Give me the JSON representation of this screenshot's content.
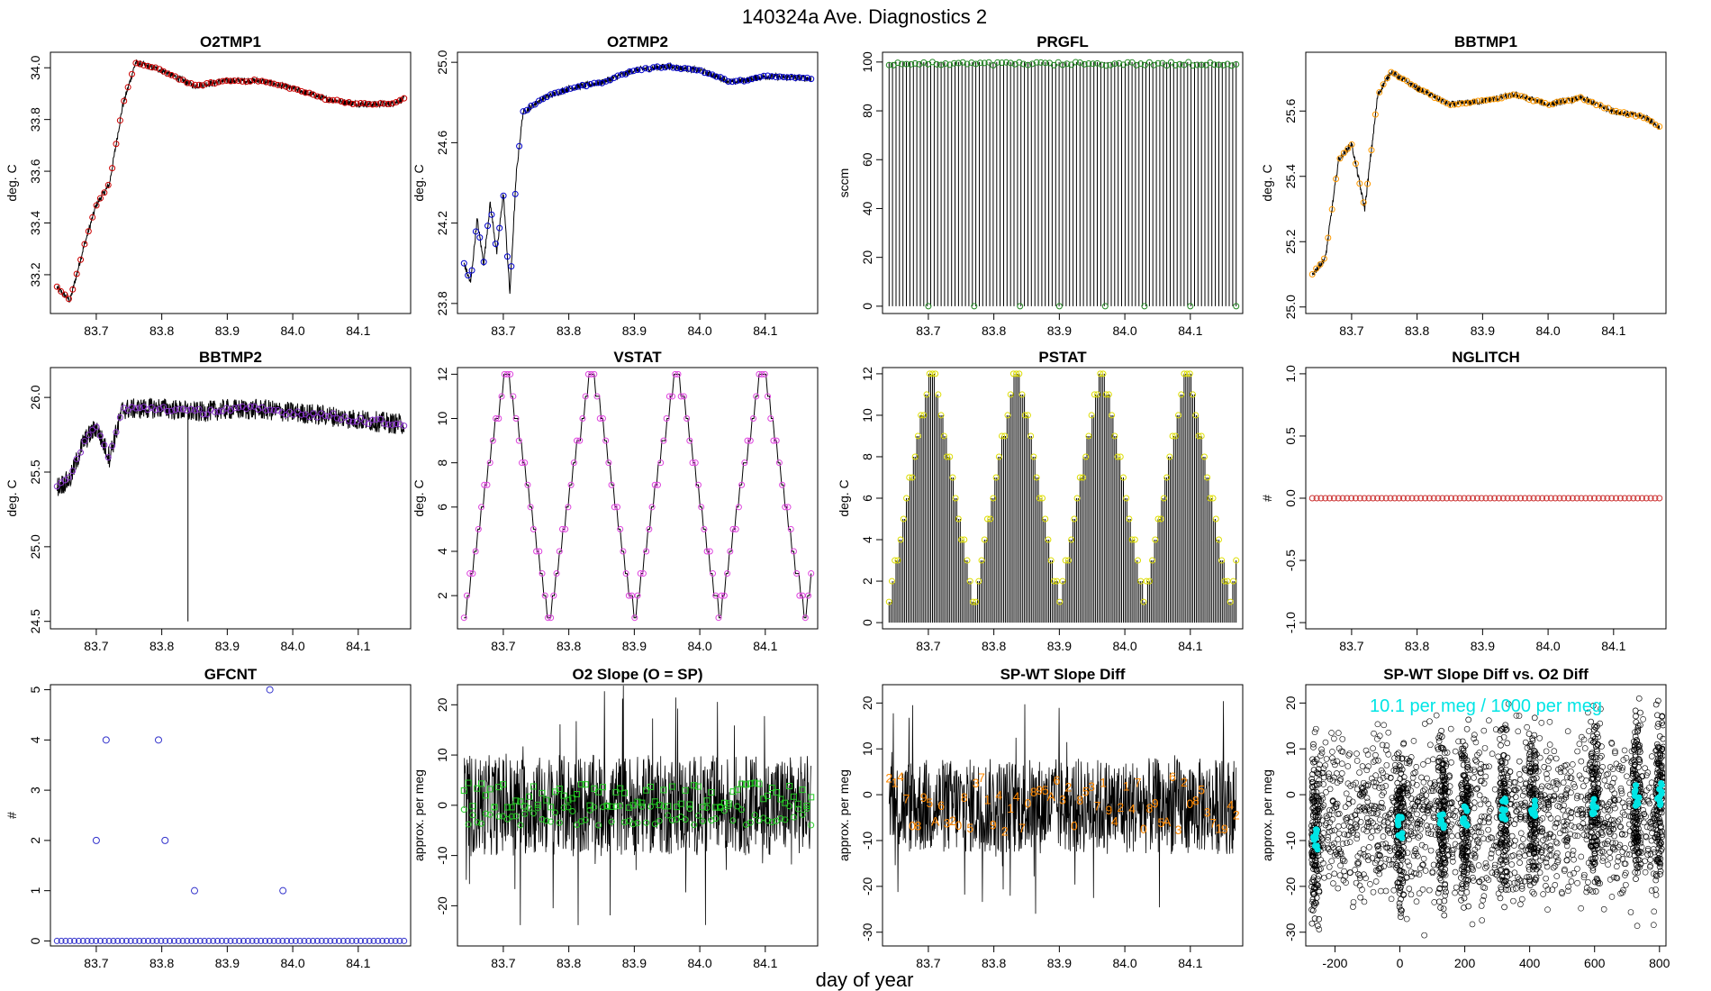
{
  "figure": {
    "title": "140324a   Ave. Diagnostics 2",
    "xlabel": "day of year"
  },
  "chart_data": [
    {
      "id": "p1",
      "type": "line",
      "title": "O2TMP1",
      "ylabel": "deg. C",
      "xlim": [
        83.63,
        84.18
      ],
      "ylim": [
        33.05,
        34.06
      ],
      "xticks": [
        83.7,
        83.8,
        83.9,
        84.0,
        84.1
      ],
      "xtick_labels": [
        "83.7",
        "83.8",
        "83.9",
        "84.0",
        "84.1"
      ],
      "yticks": [
        33.2,
        33.4,
        33.6,
        33.8,
        34.0
      ],
      "ytick_labels": [
        "33.2",
        "33.4",
        "33.6",
        "33.8",
        "34.0"
      ],
      "line_color": "#000000",
      "marker_color": "#cc0000",
      "marker": "circle",
      "x": [
        83.64,
        83.66,
        83.68,
        83.7,
        83.72,
        83.74,
        83.76,
        83.8,
        83.85,
        83.9,
        83.95,
        84.0,
        84.05,
        84.1,
        84.15,
        84.17
      ],
      "y": [
        33.15,
        33.1,
        33.3,
        33.47,
        33.55,
        33.85,
        34.02,
        33.99,
        33.93,
        33.95,
        33.95,
        33.92,
        33.88,
        33.86,
        33.86,
        33.88
      ]
    },
    {
      "id": "p2",
      "type": "line",
      "title": "O2TMP2",
      "ylabel": "deg. C",
      "xlim": [
        83.63,
        84.18
      ],
      "ylim": [
        23.75,
        25.05
      ],
      "xticks": [
        83.7,
        83.8,
        83.9,
        84.0,
        84.1
      ],
      "xtick_labels": [
        "83.7",
        "83.8",
        "83.9",
        "84.0",
        "84.1"
      ],
      "yticks": [
        23.8,
        24.2,
        24.6,
        25.0
      ],
      "ytick_labels": [
        "23.8",
        "24.2",
        "24.6",
        "25.0"
      ],
      "line_color": "#000000",
      "marker_color": "#0000cc",
      "marker": "circle",
      "x": [
        83.64,
        83.65,
        83.66,
        83.67,
        83.68,
        83.69,
        83.7,
        83.71,
        83.72,
        83.73,
        83.76,
        83.8,
        83.85,
        83.9,
        83.95,
        84.0,
        84.05,
        84.1,
        84.17
      ],
      "y": [
        24.0,
        23.9,
        24.22,
        24.0,
        24.3,
        24.05,
        24.35,
        23.85,
        24.45,
        24.75,
        24.82,
        24.87,
        24.9,
        24.96,
        24.98,
        24.96,
        24.9,
        24.93,
        24.92
      ]
    },
    {
      "id": "p3",
      "type": "bar",
      "title": "PRGFL",
      "ylabel": "sccm",
      "xlim": [
        83.63,
        84.18
      ],
      "ylim": [
        -3,
        104
      ],
      "xticks": [
        83.7,
        83.8,
        83.9,
        84.0,
        84.1
      ],
      "xtick_labels": [
        "83.7",
        "83.8",
        "83.9",
        "84.0",
        "84.1"
      ],
      "yticks": [
        0,
        20,
        40,
        60,
        80,
        100
      ],
      "ytick_labels": [
        "0",
        "20",
        "40",
        "60",
        "80",
        "100"
      ],
      "line_color": "#000000",
      "marker_color": "#228822",
      "marker": "circle",
      "top_value": 100,
      "zero_days": [
        83.7,
        83.77,
        83.84,
        83.9,
        83.97,
        84.03,
        84.1,
        84.17
      ]
    },
    {
      "id": "p4",
      "type": "line",
      "title": "BBTMP1",
      "ylabel": "deg. C",
      "xlim": [
        83.63,
        84.18
      ],
      "ylim": [
        24.98,
        25.78
      ],
      "xticks": [
        83.7,
        83.8,
        83.9,
        84.0,
        84.1
      ],
      "xtick_labels": [
        "83.7",
        "83.8",
        "83.9",
        "84.0",
        "84.1"
      ],
      "yticks": [
        25.0,
        25.2,
        25.4,
        25.6
      ],
      "ytick_labels": [
        "25.0",
        "25.2",
        "25.4",
        "25.6"
      ],
      "line_color": "#000000",
      "marker_color": "#ff9900",
      "marker": "circle",
      "x": [
        83.64,
        83.66,
        83.68,
        83.7,
        83.72,
        83.74,
        83.76,
        83.8,
        83.85,
        83.9,
        83.95,
        84.0,
        84.05,
        84.1,
        84.15,
        84.17
      ],
      "y": [
        25.1,
        25.15,
        25.45,
        25.5,
        25.3,
        25.65,
        25.72,
        25.67,
        25.62,
        25.63,
        25.65,
        25.62,
        25.64,
        25.6,
        25.58,
        25.55
      ]
    },
    {
      "id": "p5",
      "type": "line",
      "title": "BBTMP2",
      "ylabel": "deg. C",
      "xlim": [
        83.63,
        84.18
      ],
      "ylim": [
        24.45,
        26.2
      ],
      "xticks": [
        83.7,
        83.8,
        83.9,
        84.0,
        84.1
      ],
      "xtick_labels": [
        "83.7",
        "83.8",
        "83.9",
        "84.0",
        "84.1"
      ],
      "yticks": [
        24.5,
        25.0,
        25.5,
        26.0
      ],
      "ytick_labels": [
        "24.5",
        "25.0",
        "25.5",
        "26.0"
      ],
      "line_color": "#000000",
      "marker_color": "#8833cc",
      "marker": "circle",
      "x": [
        83.64,
        83.66,
        83.68,
        83.7,
        83.72,
        83.74,
        83.8,
        83.85,
        83.9,
        83.95,
        84.0,
        84.05,
        84.1,
        84.17
      ],
      "y": [
        25.4,
        25.45,
        25.7,
        25.8,
        25.6,
        25.92,
        25.93,
        25.9,
        25.92,
        25.92,
        25.9,
        25.88,
        25.85,
        25.82
      ],
      "spike": {
        "x": 83.84,
        "y": 24.5
      }
    },
    {
      "id": "p6",
      "type": "step",
      "title": "VSTAT",
      "ylabel": "deg. C",
      "xlim": [
        83.63,
        84.18
      ],
      "ylim": [
        0.5,
        12.3
      ],
      "xticks": [
        83.7,
        83.8,
        83.9,
        84.0,
        84.1
      ],
      "xtick_labels": [
        "83.7",
        "83.8",
        "83.9",
        "84.0",
        "84.1"
      ],
      "yticks": [
        2,
        4,
        6,
        8,
        10,
        12
      ],
      "ytick_labels": [
        "2",
        "4",
        "6",
        "8",
        "10",
        "12"
      ],
      "line_color": "#000000",
      "marker_color": "#dd44dd",
      "marker": "circle",
      "x_start": 83.64,
      "x_end": 84.17,
      "cycle_period": 0.13,
      "min_value": 1,
      "max_value": 12
    },
    {
      "id": "p7",
      "type": "bar",
      "title": "PSTAT",
      "ylabel": "deg. C",
      "xlim": [
        83.63,
        84.18
      ],
      "ylim": [
        -0.3,
        12.3
      ],
      "xticks": [
        83.7,
        83.8,
        83.9,
        84.0,
        84.1
      ],
      "xtick_labels": [
        "83.7",
        "83.8",
        "83.9",
        "84.0",
        "84.1"
      ],
      "yticks": [
        0,
        2,
        4,
        6,
        8,
        10,
        12
      ],
      "ytick_labels": [
        "0",
        "2",
        "4",
        "6",
        "8",
        "10",
        "12"
      ],
      "line_color": "#000000",
      "marker_color": "#dddd00",
      "marker": "circle",
      "x_start": 83.64,
      "x_end": 84.17,
      "cycle_period": 0.13,
      "min_value": 1,
      "max_value": 12
    },
    {
      "id": "p8",
      "type": "scatter",
      "title": "NGLITCH",
      "ylabel": "#",
      "xlim": [
        83.63,
        84.18
      ],
      "ylim": [
        -1.05,
        1.05
      ],
      "xticks": [
        83.7,
        83.8,
        83.9,
        84.0,
        84.1
      ],
      "xtick_labels": [
        "83.7",
        "83.8",
        "83.9",
        "84.0",
        "84.1"
      ],
      "yticks": [
        -1.0,
        -0.5,
        0.0,
        0.5,
        1.0
      ],
      "ytick_labels": [
        "-1.0",
        "-0.5",
        "0.0",
        "0.5",
        "1.0"
      ],
      "marker_color": "#cc3333",
      "marker": "circle",
      "constant_value": 0,
      "x_start": 83.64,
      "x_end": 84.17
    },
    {
      "id": "p9",
      "type": "scatter",
      "title": "GFCNT",
      "ylabel": "#",
      "xlim": [
        83.63,
        84.18
      ],
      "ylim": [
        -0.1,
        5.1
      ],
      "xticks": [
        83.7,
        83.8,
        83.9,
        84.0,
        84.1
      ],
      "xtick_labels": [
        "83.7",
        "83.8",
        "83.9",
        "84.0",
        "84.1"
      ],
      "yticks": [
        0,
        1,
        2,
        3,
        4,
        5
      ],
      "ytick_labels": [
        "0",
        "1",
        "2",
        "3",
        "4",
        "5"
      ],
      "marker_color": "#3333cc",
      "marker": "circle",
      "baseline": 0,
      "x_start": 83.64,
      "x_end": 84.17,
      "points": [
        [
          83.7,
          2
        ],
        [
          83.715,
          4
        ],
        [
          83.795,
          4
        ],
        [
          83.805,
          2
        ],
        [
          83.85,
          1
        ],
        [
          83.965,
          5
        ],
        [
          83.985,
          1
        ]
      ]
    },
    {
      "id": "p10",
      "type": "line",
      "title": "O2 Slope (O = SP)",
      "ylabel": "approx. per meg",
      "xlim": [
        83.63,
        84.18
      ],
      "ylim": [
        -28,
        24
      ],
      "xticks": [
        83.7,
        83.8,
        83.9,
        84.0,
        84.1
      ],
      "xtick_labels": [
        "83.7",
        "83.8",
        "83.9",
        "84.0",
        "84.1"
      ],
      "yticks": [
        -20,
        -10,
        0,
        10,
        20
      ],
      "ytick_labels": [
        "-20",
        "-10",
        "0",
        "10",
        "20"
      ],
      "line_color": "#000000",
      "marker_color": "#22cc22",
      "noise_center": 0,
      "noise_range": [
        -10,
        10
      ],
      "square_level": 2,
      "circle_level": -2
    },
    {
      "id": "p11",
      "type": "line",
      "title": "SP-WT Slope Diff",
      "ylabel": "approx. per meg",
      "xlim": [
        83.63,
        84.18
      ],
      "ylim": [
        -33,
        24
      ],
      "xticks": [
        83.7,
        83.8,
        83.9,
        84.0,
        84.1
      ],
      "xtick_labels": [
        "83.7",
        "83.8",
        "83.9",
        "84.0",
        "84.1"
      ],
      "yticks": [
        -30,
        -20,
        -10,
        0,
        10,
        20
      ],
      "ytick_labels": [
        "-30",
        "-20",
        "-10",
        "0",
        "10",
        "20"
      ],
      "line_color": "#000000",
      "label_color": "#ff8800",
      "noise_center": -3,
      "noise_range": [
        -13,
        8
      ],
      "digit_labels": [
        "2",
        "1",
        "4",
        "7",
        "0",
        "8",
        "9",
        "5",
        "A",
        "6",
        "3",
        "2",
        "0",
        "8",
        "5",
        "3",
        "7",
        "1",
        "9",
        "4"
      ]
    },
    {
      "id": "p12",
      "type": "scatter",
      "title": "SP-WT Slope Diff vs. O2 Diff",
      "ylabel": "approx. per meg",
      "xlim": [
        -290,
        820
      ],
      "ylim": [
        -33,
        24
      ],
      "xticks": [
        -200,
        0,
        200,
        400,
        600,
        800
      ],
      "xtick_labels": [
        "-200",
        "0",
        "200",
        "400",
        "600",
        "800"
      ],
      "yticks": [
        -30,
        -20,
        -10,
        0,
        10,
        20
      ],
      "ytick_labels": [
        "-30",
        "-20",
        "-10",
        "0",
        "10",
        "20"
      ],
      "marker_color": "#000000",
      "highlight_color": "#00e5e5",
      "annotation": "10.1 per meg / 1000 per meg",
      "clusters": [
        [
          -260,
          -10
        ],
        [
          0,
          -7
        ],
        [
          130,
          -5
        ],
        [
          200,
          -5
        ],
        [
          320,
          -3
        ],
        [
          410,
          -3
        ],
        [
          600,
          -2
        ],
        [
          730,
          0
        ],
        [
          800,
          0
        ]
      ]
    }
  ]
}
